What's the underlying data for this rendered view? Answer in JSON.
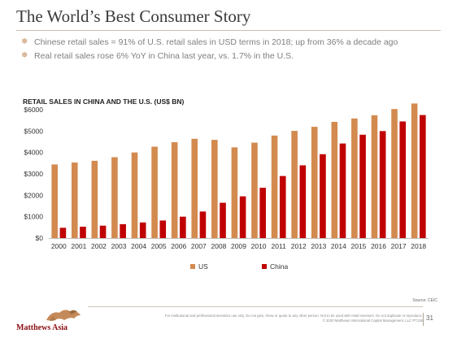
{
  "slide": {
    "title": "The World’s Best Consumer Story",
    "bullets": [
      "Chinese retail sales = 91% of U.S. retail sales in USD terms in 2018; up from 36% a decade ago",
      "Real retail sales rose 6% YoY in China last year, vs. 1.7% in the U.S."
    ],
    "bullet_icon": "snowflake-bullet-icon",
    "source": "Source: CEIC",
    "disclaimer_line1": "For institutional and professional investors use only. Do not give, show or quote to any other person. Not to be used with retail investors. Do not duplicate or reproduce.",
    "disclaimer_line2": "© 2020 Matthews International Capital Management, LLC  PT136",
    "page_number": "31",
    "logo_text": "Matthews Asia",
    "logo_icon": "lion-logo-icon"
  },
  "colors": {
    "us": "#d38a4f",
    "china": "#c00000",
    "brand_red": "#8b0e12"
  },
  "chart_data": {
    "type": "bar",
    "title": "RETAIL SALES IN CHINA AND THE U.S. (US$ BN)",
    "categories": [
      "2000",
      "2001",
      "2002",
      "2003",
      "2004",
      "2005",
      "2006",
      "2007",
      "2008",
      "2009",
      "2010",
      "2011",
      "2012",
      "2013",
      "2014",
      "2015",
      "2016",
      "2017",
      "2018"
    ],
    "series": [
      {
        "name": "US",
        "values": [
          3440,
          3530,
          3610,
          3780,
          4000,
          4270,
          4480,
          4640,
          4590,
          4240,
          4460,
          4790,
          5010,
          5200,
          5430,
          5590,
          5740,
          6030,
          6290
        ]
      },
      {
        "name": "China",
        "values": [
          480,
          530,
          580,
          650,
          730,
          820,
          1000,
          1240,
          1650,
          1950,
          2350,
          2900,
          3400,
          3920,
          4420,
          4830,
          5000,
          5450,
          5750
        ]
      }
    ],
    "ylim": [
      0,
      6000
    ],
    "yticks": [
      0,
      1000,
      2000,
      3000,
      4000,
      5000,
      6000
    ],
    "ytick_labels": [
      "$0",
      "$1000",
      "$2000",
      "$3000",
      "$4000",
      "$5000",
      "$6000"
    ],
    "legend_position": "bottom",
    "grid": false
  }
}
